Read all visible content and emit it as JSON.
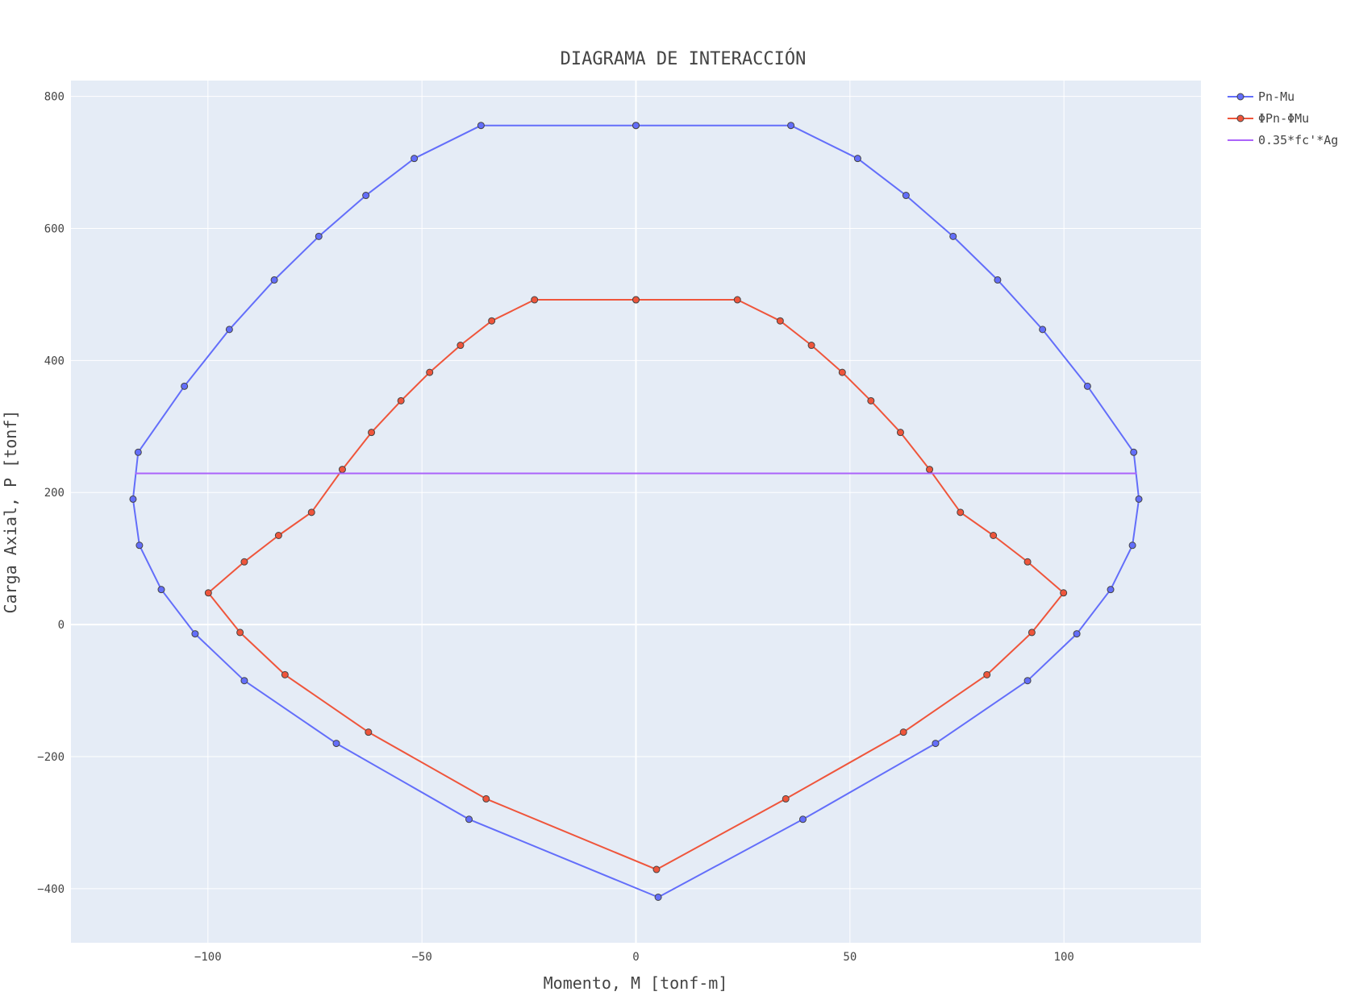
{
  "chart_data": {
    "type": "line",
    "title": "DIAGRAMA DE INTERACCIÓN",
    "xlabel": "Momento, M [tonf-m]",
    "ylabel": "Carga Axial, P [tonf]",
    "xlim": [
      -132,
      132
    ],
    "ylim": [
      -482,
      824
    ],
    "xticks": [
      -100,
      -50,
      0,
      50,
      100
    ],
    "yticks": [
      -400,
      -200,
      0,
      200,
      400,
      600,
      800
    ],
    "grid": true,
    "legend_position": "top-right",
    "plot_background": "#e5ecf6",
    "series": [
      {
        "name": "Pn-Mu",
        "color": "#636efa",
        "markers": true,
        "x": [
          0,
          36.2,
          51.8,
          63.1,
          74.1,
          84.5,
          95.0,
          105.5,
          116.3,
          117.5,
          116.0,
          110.9,
          103.0,
          91.5,
          70.0,
          39.0,
          5.2,
          -39.0,
          -70.0,
          -91.5,
          -103.0,
          -110.9,
          -116.0,
          -117.5,
          -116.3,
          -105.5,
          -95.0,
          -84.5,
          -74.1,
          -63.1,
          -51.8,
          -36.2,
          0
        ],
        "y": [
          756,
          756,
          706,
          650,
          588,
          522,
          447,
          361,
          261,
          190,
          120,
          53,
          -14,
          -85,
          -180,
          -295,
          -413,
          -295,
          -180,
          -85,
          -14,
          53,
          120,
          190,
          261,
          361,
          447,
          522,
          588,
          650,
          706,
          756,
          756
        ]
      },
      {
        "name": "ΦPn-ΦMu",
        "color": "#ef553b",
        "markers": true,
        "x": [
          0,
          23.7,
          33.7,
          41.0,
          48.2,
          54.9,
          61.8,
          68.6,
          75.8,
          83.5,
          91.5,
          99.9,
          92.5,
          82.0,
          62.5,
          35.0,
          4.8,
          -35.0,
          -62.5,
          -82.0,
          -92.5,
          -99.9,
          -91.5,
          -83.5,
          -75.8,
          -68.6,
          -61.8,
          -54.9,
          -48.2,
          -41.0,
          -33.7,
          -23.7,
          0
        ],
        "y": [
          492,
          492,
          460,
          423,
          382,
          339,
          291,
          235,
          170,
          135,
          95,
          48,
          -12,
          -76,
          -163,
          -264,
          -371,
          -264,
          -163,
          -76,
          -12,
          48,
          95,
          135,
          170,
          235,
          291,
          339,
          382,
          423,
          460,
          492,
          492
        ]
      },
      {
        "name": "0.35*fc'*Ag",
        "color": "#ab63fa",
        "markers": false,
        "x": [
          -117,
          117
        ],
        "y": [
          229,
          229
        ]
      }
    ]
  }
}
